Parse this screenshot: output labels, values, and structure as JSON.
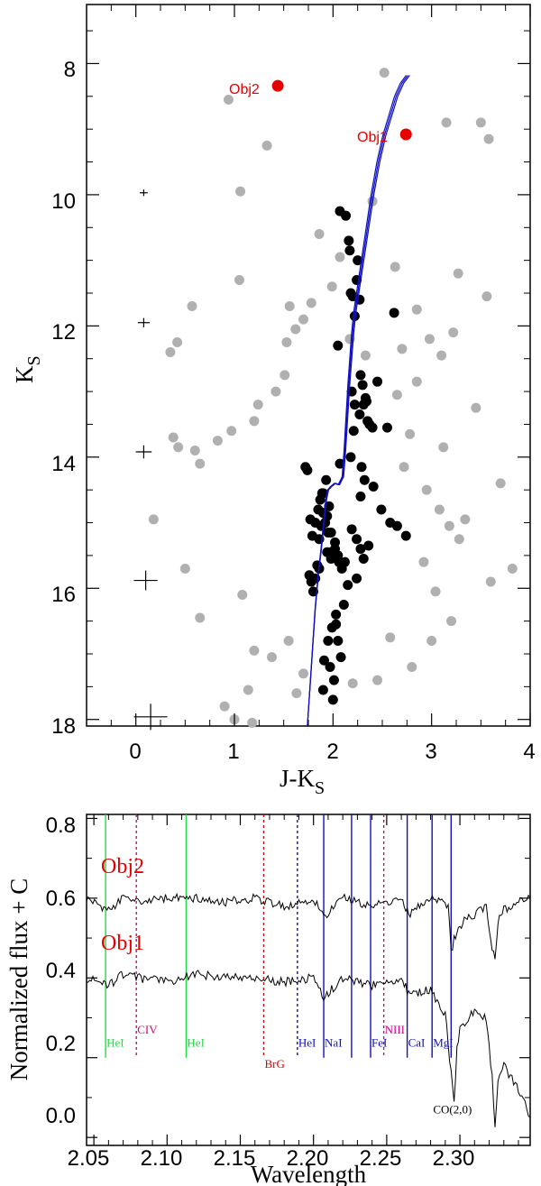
{
  "chart_data": [
    {
      "type": "scatter",
      "title": "",
      "xlabel": "J-K",
      "xlabel_sub": "S",
      "ylabel": "K",
      "ylabel_sub": "S",
      "xlim": [
        -0.5,
        4.0
      ],
      "ylim": [
        18.1,
        7.1
      ],
      "y_inverted": true,
      "xticks": [
        "0",
        "1",
        "2",
        "3",
        "4"
      ],
      "yticks": [
        "8",
        "10",
        "12",
        "14",
        "16",
        "18"
      ],
      "xtick_values": [
        0,
        1,
        2,
        3,
        4
      ],
      "ytick_values": [
        8,
        10,
        12,
        14,
        16,
        18
      ],
      "colors": {
        "field": "#b0b0b0",
        "members": "#000000",
        "objects": "#e60000",
        "isochrone": "#1010c0"
      },
      "error_bars": [
        {
          "x": 0.08,
          "y": 9.97,
          "dx": 0.04,
          "dy": 0.05
        },
        {
          "x": 0.08,
          "y": 11.95,
          "dx": 0.06,
          "dy": 0.07
        },
        {
          "x": 0.08,
          "y": 13.92,
          "dx": 0.08,
          "dy": 0.1
        },
        {
          "x": 0.1,
          "y": 15.88,
          "dx": 0.12,
          "dy": 0.15
        },
        {
          "x": 0.15,
          "y": 17.96,
          "dx": 0.17,
          "dy": 0.2
        }
      ],
      "series": [
        {
          "name": "Obj1",
          "x": [
            2.74
          ],
          "y": [
            9.08
          ]
        },
        {
          "name": "Obj2",
          "x": [
            1.44
          ],
          "y": [
            8.34
          ]
        },
        {
          "x": [
            2.07,
            2.13,
            2.16,
            2.17,
            2.18,
            2.2,
            2.22,
            2.24,
            2.25,
            2.27,
            2.28,
            2.3,
            2.31,
            2.33,
            2.35,
            2.37,
            2.4,
            2.55,
            2.62,
            2.19,
            2.22,
            2.27,
            2.34,
            2.45,
            2.21,
            2.18,
            2.29,
            2.32,
            2.28,
            2.41,
            2.49,
            2.58,
            2.65,
            2.74,
            2.19,
            2.24,
            2.28,
            2.31,
            2.36,
            2.12,
            2.09,
            2.05,
            2.02,
            1.98,
            1.95,
            1.92,
            1.9,
            1.88,
            1.86,
            1.84,
            1.82,
            1.8,
            1.78,
            1.76,
            1.74,
            1.72,
            1.9,
            1.94,
            1.98,
            2.02,
            2.06,
            1.96,
            1.93,
            1.89,
            1.85,
            1.82,
            1.79,
            1.77,
            1.94,
            1.98,
            1.86,
            2.03,
            2.05,
            1.91,
            1.97,
            2.01,
            2.08,
            1.99,
            2.11,
            2.15,
            1.9,
            1.95,
            2.03,
            2.07,
            2.24,
            1.87,
            2.0,
            2.05
          ],
          "y": [
            10.25,
            10.32,
            10.7,
            10.85,
            11.5,
            11.55,
            11.85,
            11.3,
            11.0,
            11.6,
            12.75,
            12.9,
            13.2,
            13.1,
            13.45,
            13.5,
            13.55,
            13.55,
            11.8,
            13.0,
            13.2,
            13.35,
            13.15,
            12.85,
            13.6,
            14.0,
            14.15,
            14.35,
            14.6,
            14.45,
            14.8,
            15.0,
            15.05,
            15.2,
            15.1,
            15.25,
            15.4,
            15.55,
            15.35,
            15.6,
            15.7,
            15.5,
            15.3,
            15.45,
            15.15,
            15.0,
            14.85,
            15.05,
            15.25,
            15.65,
            15.85,
            16.05,
            15.9,
            15.8,
            14.2,
            14.15,
            14.55,
            14.9,
            15.15,
            15.4,
            15.6,
            14.75,
            14.35,
            14.55,
            14.8,
            15.0,
            15.2,
            14.95,
            15.45,
            15.55,
            15.7,
            16.4,
            16.8,
            17.1,
            17.2,
            17.4,
            17.05,
            16.6,
            16.25,
            15.95,
            17.55,
            16.8,
            16.55,
            14.1,
            15.85,
            14.65,
            17.7,
            12.3
          ]
        },
        {
          "x": [
            1.33,
            1.06,
            0.94,
            1.05,
            1.56,
            2.52,
            3.15,
            3.5,
            3.58,
            3.56,
            3.27,
            3.22,
            3.1,
            2.98,
            2.85,
            2.63,
            2.7,
            2.33,
            2.17,
            1.99,
            2.07,
            1.78,
            1.7,
            1.53,
            1.51,
            1.42,
            1.24,
            1.2,
            0.97,
            0.83,
            0.65,
            0.6,
            0.38,
            0.42,
            0.57,
            0.35,
            0.43,
            0.18,
            0.5,
            0.65,
            1.63,
            3.82,
            3.6,
            3.2,
            3.0,
            2.8,
            2.2,
            1.7,
            1.2,
            0.9,
            1.0,
            1.08,
            1.14,
            2.45,
            2.58,
            3.04,
            3.28,
            3.34,
            2.95,
            2.72,
            1.62,
            1.86,
            2.4,
            2.65,
            3.12,
            3.45,
            3.7,
            1.38,
            1.18,
            1.55,
            2.85,
            2.78,
            2.92,
            3.18,
            3.08
          ],
          "y": [
            9.25,
            9.95,
            8.55,
            11.3,
            11.7,
            8.14,
            8.9,
            8.9,
            9.15,
            11.55,
            11.2,
            12.1,
            12.45,
            12.2,
            11.75,
            11.1,
            12.35,
            12.45,
            12.2,
            11.4,
            10.95,
            11.65,
            11.9,
            12.25,
            12.75,
            13.0,
            13.2,
            13.45,
            13.6,
            13.75,
            14.1,
            13.9,
            13.7,
            12.25,
            11.7,
            12.4,
            13.85,
            14.95,
            15.7,
            16.45,
            17.6,
            15.7,
            15.9,
            16.5,
            16.8,
            17.2,
            17.45,
            17.3,
            16.95,
            17.8,
            18.0,
            16.1,
            17.55,
            17.4,
            16.75,
            16.05,
            15.25,
            14.95,
            14.5,
            14.15,
            12.05,
            10.6,
            10.1,
            13.05,
            13.85,
            13.25,
            14.4,
            17.05,
            18.05,
            16.8,
            12.85,
            13.65,
            15.6,
            15.05,
            14.8
          ]
        }
      ],
      "isochrone": {
        "x": [
          1.74,
          1.78,
          1.82,
          1.85,
          1.88,
          1.9,
          1.92,
          1.93,
          1.95,
          1.98,
          2.02,
          2.06,
          2.1,
          2.12,
          2.14,
          2.16,
          2.18,
          2.2,
          2.22,
          2.26,
          2.3,
          2.35,
          2.4,
          2.46,
          2.52,
          2.58,
          2.64,
          2.7,
          2.76
        ],
        "y": [
          18.1,
          17.2,
          16.3,
          15.8,
          15.4,
          15.1,
          14.8,
          14.65,
          14.5,
          14.45,
          14.4,
          14.42,
          14.3,
          13.9,
          13.4,
          12.9,
          12.5,
          12.1,
          11.8,
          11.4,
          11.0,
          10.5,
          10.0,
          9.5,
          9.1,
          8.8,
          8.5,
          8.3,
          8.18
        ]
      }
    },
    {
      "type": "line",
      "title": "",
      "xlabel": "Wavelength",
      "ylabel": "Normalized flux + C",
      "xlim": [
        2.045,
        2.348
      ],
      "ylim": [
        -0.02,
        0.81
      ],
      "xticks": [
        "2.05",
        "2.10",
        "2.15",
        "2.20",
        "2.25",
        "2.30"
      ],
      "xtick_values": [
        2.05,
        2.1,
        2.15,
        2.2,
        2.25,
        2.3
      ],
      "yticks": [
        "0.0",
        "0.2",
        "0.4",
        "0.6",
        "0.8"
      ],
      "ytick_values": [
        0.0,
        0.2,
        0.4,
        0.6,
        0.8
      ],
      "series": [
        {
          "name": "Obj2",
          "color": "#e60000",
          "baseline": 0.595,
          "x": [
            2.045,
            2.06,
            2.07,
            2.08,
            2.1,
            2.12,
            2.14,
            2.16,
            2.18,
            2.2,
            2.207,
            2.22,
            2.24,
            2.26,
            2.265,
            2.28,
            2.292,
            2.294,
            2.296,
            2.3,
            2.305,
            2.31,
            2.318,
            2.322,
            2.324,
            2.326,
            2.33,
            2.34,
            2.348
          ],
          "y": [
            0.6,
            0.57,
            0.6,
            0.59,
            0.6,
            0.6,
            0.59,
            0.6,
            0.58,
            0.6,
            0.55,
            0.6,
            0.58,
            0.6,
            0.56,
            0.6,
            0.58,
            0.46,
            0.5,
            0.53,
            0.55,
            0.56,
            0.58,
            0.48,
            0.45,
            0.54,
            0.57,
            0.59,
            0.6
          ]
        },
        {
          "name": "Obj1",
          "color": "#e60000",
          "baseline": 0.4,
          "x": [
            2.045,
            2.06,
            2.07,
            2.08,
            2.1,
            2.12,
            2.14,
            2.16,
            2.18,
            2.2,
            2.207,
            2.22,
            2.24,
            2.26,
            2.265,
            2.28,
            2.29,
            2.293,
            2.296,
            2.298,
            2.3,
            2.31,
            2.318,
            2.322,
            2.324,
            2.326,
            2.33,
            2.34,
            2.348
          ],
          "y": [
            0.4,
            0.38,
            0.41,
            0.4,
            0.39,
            0.41,
            0.4,
            0.4,
            0.39,
            0.4,
            0.35,
            0.4,
            0.38,
            0.4,
            0.36,
            0.37,
            0.31,
            0.2,
            0.08,
            0.22,
            0.27,
            0.32,
            0.3,
            0.15,
            0.02,
            0.14,
            0.18,
            0.12,
            0.05
          ]
        }
      ],
      "line_markers": [
        {
          "label": "HeI",
          "x": 2.058,
          "color": "#22dd44",
          "dashed": false,
          "label_y": 0.228
        },
        {
          "label": "CIV",
          "x": 2.079,
          "color": "#dd0088",
          "dashed": true,
          "label_y": 0.26
        },
        {
          "label": "HeI",
          "x": 2.113,
          "color": "#22dd44",
          "dashed": false,
          "label_y": 0.228
        },
        {
          "label": "BrG",
          "x": 2.166,
          "color": "#e60000",
          "dashed": true,
          "label_y": 0.175
        },
        {
          "label": "HeI",
          "x": 2.189,
          "color": "#1010c0",
          "dashed": true,
          "label_y": 0.228
        },
        {
          "label": "NaI",
          "x": 2.207,
          "color": "#1010c0",
          "dashed": false,
          "label_y": 0.228
        },
        {
          "label": "NaI",
          "x": 2.226,
          "color": "#1010c0",
          "dashed": false,
          "label_y": null
        },
        {
          "label": "FeI",
          "x": 2.239,
          "color": "#1010c0",
          "dashed": false,
          "label_y": 0.228
        },
        {
          "label": "NIII",
          "x": 2.248,
          "color": "#dd0088",
          "dashed": true,
          "label_y": 0.26
        },
        {
          "label": "CaI",
          "x": 2.264,
          "color": "#1010c0",
          "dashed": false,
          "label_y": 0.228
        },
        {
          "label": "MgI",
          "x": 2.281,
          "color": "#1010c0",
          "dashed": false,
          "label_y": 0.228
        },
        {
          "label": "CO(2,0)",
          "x": 2.294,
          "color": "#1010c0",
          "dashed": false,
          "label_y": 0.06
        }
      ]
    }
  ]
}
